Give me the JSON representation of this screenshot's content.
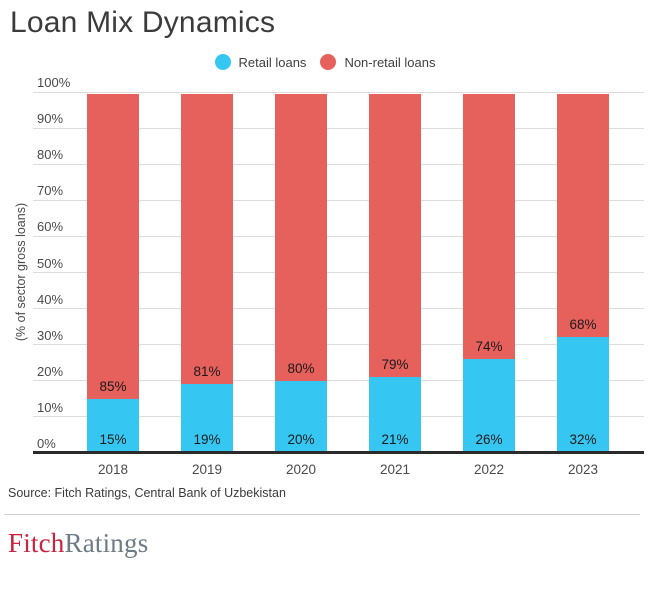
{
  "title": "Loan Mix Dynamics",
  "y_axis_label": "(% of sector gross loans)",
  "source": "Source: Fitch Ratings, Central Bank of Uzbekistan",
  "logo": {
    "fitch": "Fitch",
    "ratings": "Ratings"
  },
  "colors": {
    "retail": "#35c7f2",
    "non_retail": "#e6605c",
    "axis": "#2b2b2b",
    "gridline": "#dcdcdc",
    "title_text": "#3b3b3b",
    "fitch_red": "#c9233f",
    "ratings_gray": "#6e7a84"
  },
  "chart_data": {
    "type": "bar",
    "stacked": true,
    "title": "Loan Mix Dynamics",
    "categories": [
      "2018",
      "2019",
      "2020",
      "2021",
      "2022",
      "2023"
    ],
    "series": [
      {
        "name": "Retail loans",
        "color": "#35c7f2",
        "values": [
          15,
          19,
          20,
          21,
          26,
          32
        ]
      },
      {
        "name": "Non-retail loans",
        "color": "#e6605c",
        "values": [
          85,
          81,
          80,
          79,
          74,
          68
        ]
      }
    ],
    "xlabel": "",
    "ylabel": "(% of sector gross loans)",
    "ylim": [
      0,
      100
    ],
    "ytick_labels": [
      "0%",
      "10%",
      "20%",
      "30%",
      "40%",
      "50%",
      "60%",
      "70%",
      "80%",
      "90%",
      "100%"
    ],
    "grid": "horizontal",
    "legend_position": "top",
    "value_labels": "percent"
  }
}
